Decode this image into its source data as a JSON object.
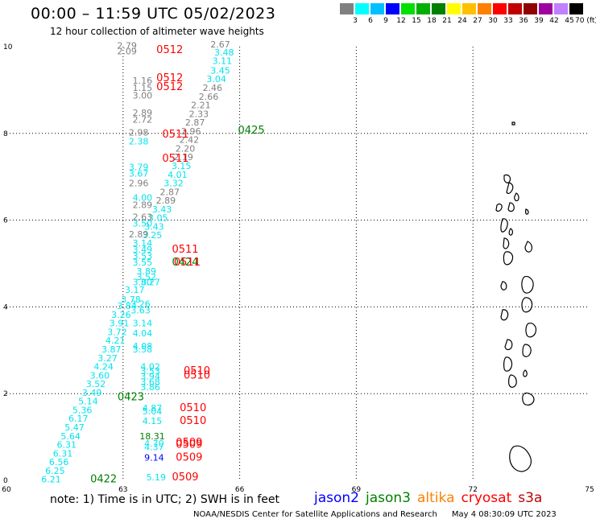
{
  "title": "00:00 – 11:59 UTC 05/02/2023",
  "subtitle": "12 hour collection of altimeter wave heights",
  "colorbar": {
    "colors": [
      "#808080",
      "#00ffff",
      "#00c0ff",
      "#0000ff",
      "#00e000",
      "#00b000",
      "#008000",
      "#ffff00",
      "#ffc000",
      "#ff8000",
      "#ff0000",
      "#c00000",
      "#900000",
      "#a000a0",
      "#c080ff",
      "#000000"
    ],
    "labels": [
      "3",
      "6",
      "9",
      "12",
      "15",
      "18",
      "21",
      "24",
      "27",
      "30",
      "33",
      "36",
      "39",
      "42",
      "45",
      "70 (ft)"
    ]
  },
  "note": "note:  1) Time is in UTC;  2) SWH is in feet",
  "legend": [
    {
      "name": "jason2",
      "color": "#0000ff"
    },
    {
      "name": "jason3",
      "color": "#008000"
    },
    {
      "name": "altika",
      "color": "#ff8000"
    },
    {
      "name": "cryosat",
      "color": "#ff0000"
    },
    {
      "name": "s3a",
      "color": "#c00000"
    }
  ],
  "footer": {
    "credit": "NOAA/NESDIS Center for Satellite Applications and Research",
    "timestamp": "May  4 08:30:09 UTC 2023"
  },
  "chart_data": {
    "type": "scatter",
    "x_ticks": [
      "60",
      "63",
      "66",
      "69",
      "72",
      "75"
    ],
    "y_ticks": [
      "0",
      "2",
      "4",
      "6",
      "8",
      "10"
    ],
    "xlim": [
      60,
      75
    ],
    "ylim": [
      0,
      10
    ],
    "grid": true,
    "track_labels": [
      {
        "x": 64.2,
        "y": 9.85,
        "text": "0512",
        "color": "#ff0000"
      },
      {
        "x": 64.2,
        "y": 9.2,
        "text": "0512",
        "color": "#ff0000"
      },
      {
        "x": 64.2,
        "y": 9.0,
        "text": "0512",
        "color": "#ff0000"
      },
      {
        "x": 66.3,
        "y": 8.0,
        "text": "0425",
        "color": "#008000"
      },
      {
        "x": 64.35,
        "y": 7.9,
        "text": "0511",
        "color": "#ff0000"
      },
      {
        "x": 64.35,
        "y": 7.35,
        "text": "0511",
        "color": "#ff0000"
      },
      {
        "x": 64.6,
        "y": 5.25,
        "text": "0511",
        "color": "#ff0000"
      },
      {
        "x": 64.6,
        "y": 4.95,
        "text": "0424",
        "color": "#008000"
      },
      {
        "x": 64.65,
        "y": 4.95,
        "text": "0511",
        "color": "#ff0000"
      },
      {
        "x": 64.9,
        "y": 2.45,
        "text": "0510",
        "color": "#ff0000"
      },
      {
        "x": 64.9,
        "y": 2.35,
        "text": "0510",
        "color": "#ff0000"
      },
      {
        "x": 63.2,
        "y": 1.85,
        "text": "0423",
        "color": "#008000"
      },
      {
        "x": 64.8,
        "y": 1.6,
        "text": "0510",
        "color": "#ff0000"
      },
      {
        "x": 64.8,
        "y": 1.3,
        "text": "0510",
        "color": "#ff0000"
      },
      {
        "x": 64.7,
        "y": 0.8,
        "text": "0509",
        "color": "#ff0000"
      },
      {
        "x": 64.7,
        "y": 0.75,
        "text": "0509",
        "color": "#ff0000"
      },
      {
        "x": 64.7,
        "y": 0.45,
        "text": "0509",
        "color": "#ff0000"
      },
      {
        "x": 62.5,
        "y": -0.05,
        "text": "0422",
        "color": "#008000"
      },
      {
        "x": 64.6,
        "y": 0.0,
        "text": "0509",
        "color": "#ff0000"
      }
    ],
    "points": [
      {
        "x": 63.1,
        "y": 9.95,
        "v": "2.79",
        "color": "#808080"
      },
      {
        "x": 63.1,
        "y": 9.82,
        "v": "2.09",
        "color": "#808080"
      },
      {
        "x": 65.5,
        "y": 9.98,
        "v": "2.67",
        "color": "#808080"
      },
      {
        "x": 65.6,
        "y": 9.8,
        "v": "3.48",
        "color": "#00e5ee"
      },
      {
        "x": 65.55,
        "y": 9.6,
        "v": "3.11",
        "color": "#00e5ee"
      },
      {
        "x": 65.5,
        "y": 9.38,
        "v": "3.45",
        "color": "#00e5ee"
      },
      {
        "x": 65.4,
        "y": 9.18,
        "v": "3.04",
        "color": "#00e5ee"
      },
      {
        "x": 65.3,
        "y": 8.98,
        "v": "2.46",
        "color": "#808080"
      },
      {
        "x": 65.2,
        "y": 8.78,
        "v": "2.66",
        "color": "#808080"
      },
      {
        "x": 65.0,
        "y": 8.58,
        "v": "2.21",
        "color": "#808080"
      },
      {
        "x": 64.95,
        "y": 8.38,
        "v": "2.33",
        "color": "#808080"
      },
      {
        "x": 64.85,
        "y": 8.18,
        "v": "2.87",
        "color": "#808080"
      },
      {
        "x": 64.75,
        "y": 7.98,
        "v": "2.96",
        "color": "#808080"
      },
      {
        "x": 64.7,
        "y": 7.78,
        "v": "2.42",
        "color": "#808080"
      },
      {
        "x": 64.6,
        "y": 7.58,
        "v": "2.20",
        "color": "#808080"
      },
      {
        "x": 64.55,
        "y": 7.38,
        "v": "2.19",
        "color": "#808080"
      },
      {
        "x": 64.5,
        "y": 7.18,
        "v": "3.15",
        "color": "#00e5ee"
      },
      {
        "x": 64.4,
        "y": 6.98,
        "v": "4.01",
        "color": "#00e5ee"
      },
      {
        "x": 64.3,
        "y": 6.78,
        "v": "3.32",
        "color": "#00e5ee"
      },
      {
        "x": 64.2,
        "y": 6.58,
        "v": "2.87",
        "color": "#808080"
      },
      {
        "x": 64.1,
        "y": 6.38,
        "v": "2.89",
        "color": "#808080"
      },
      {
        "x": 64.0,
        "y": 6.18,
        "v": "3.43",
        "color": "#00e5ee"
      },
      {
        "x": 63.9,
        "y": 5.98,
        "v": "3.05",
        "color": "#00e5ee"
      },
      {
        "x": 63.8,
        "y": 5.78,
        "v": "3.43",
        "color": "#00e5ee"
      },
      {
        "x": 63.75,
        "y": 5.58,
        "v": "3.25",
        "color": "#00e5ee"
      },
      {
        "x": 63.5,
        "y": 9.15,
        "v": "1.16",
        "color": "#808080"
      },
      {
        "x": 63.5,
        "y": 8.98,
        "v": "1.15",
        "color": "#808080"
      },
      {
        "x": 63.5,
        "y": 8.8,
        "v": "3.00",
        "color": "#808080"
      },
      {
        "x": 63.5,
        "y": 8.4,
        "v": "2.89",
        "color": "#808080"
      },
      {
        "x": 63.5,
        "y": 8.25,
        "v": "2.72",
        "color": "#808080"
      },
      {
        "x": 63.4,
        "y": 7.95,
        "v": "2.98",
        "color": "#808080"
      },
      {
        "x": 63.4,
        "y": 7.75,
        "v": "2.38",
        "color": "#00e5ee"
      },
      {
        "x": 63.4,
        "y": 7.15,
        "v": "3.79",
        "color": "#00e5ee"
      },
      {
        "x": 63.4,
        "y": 7.0,
        "v": "3.67",
        "color": "#00e5ee"
      },
      {
        "x": 63.4,
        "y": 6.78,
        "v": "2.96",
        "color": "#808080"
      },
      {
        "x": 63.5,
        "y": 6.45,
        "v": "4.00",
        "color": "#00e5ee"
      },
      {
        "x": 63.5,
        "y": 6.28,
        "v": "2.89",
        "color": "#808080"
      },
      {
        "x": 63.5,
        "y": 6.0,
        "v": "2.63",
        "color": "#808080"
      },
      {
        "x": 63.5,
        "y": 5.85,
        "v": "3.50",
        "color": "#00e5ee"
      },
      {
        "x": 63.4,
        "y": 5.6,
        "v": "2.89",
        "color": "#808080"
      },
      {
        "x": 63.5,
        "y": 5.4,
        "v": "3.14",
        "color": "#00e5ee"
      },
      {
        "x": 63.5,
        "y": 5.25,
        "v": "3.49",
        "color": "#00e5ee"
      },
      {
        "x": 63.5,
        "y": 5.1,
        "v": "3.53",
        "color": "#00e5ee"
      },
      {
        "x": 63.5,
        "y": 4.95,
        "v": "3.55",
        "color": "#00e5ee"
      },
      {
        "x": 63.6,
        "y": 4.75,
        "v": "3.89",
        "color": "#00e5ee"
      },
      {
        "x": 63.6,
        "y": 4.62,
        "v": "3.52",
        "color": "#00e5ee"
      },
      {
        "x": 63.5,
        "y": 4.5,
        "v": "3.00",
        "color": "#00e5ee"
      },
      {
        "x": 63.7,
        "y": 4.5,
        "v": "3.27",
        "color": "#00e5ee"
      },
      {
        "x": 63.3,
        "y": 4.32,
        "v": "3.17",
        "color": "#00e5ee"
      },
      {
        "x": 63.2,
        "y": 4.1,
        "v": "3.78",
        "color": "#00e5ee"
      },
      {
        "x": 63.1,
        "y": 3.95,
        "v": "3.84",
        "color": "#00e5ee"
      },
      {
        "x": 63.45,
        "y": 3.85,
        "v": "3.63",
        "color": "#00e5ee"
      },
      {
        "x": 63.45,
        "y": 4.0,
        "v": "3.26",
        "color": "#00e5ee"
      },
      {
        "x": 62.95,
        "y": 3.75,
        "v": "3.26",
        "color": "#00e5ee"
      },
      {
        "x": 62.9,
        "y": 3.55,
        "v": "3.91",
        "color": "#00e5ee"
      },
      {
        "x": 63.5,
        "y": 3.55,
        "v": "3.14",
        "color": "#00e5ee"
      },
      {
        "x": 62.85,
        "y": 3.35,
        "v": "3.72",
        "color": "#00e5ee"
      },
      {
        "x": 63.5,
        "y": 3.32,
        "v": "4.04",
        "color": "#00e5ee"
      },
      {
        "x": 62.8,
        "y": 3.15,
        "v": "4.21",
        "color": "#00e5ee"
      },
      {
        "x": 62.7,
        "y": 2.95,
        "v": "3.87",
        "color": "#00e5ee"
      },
      {
        "x": 63.5,
        "y": 3.02,
        "v": "4.08",
        "color": "#00e5ee"
      },
      {
        "x": 63.5,
        "y": 2.95,
        "v": "3.58",
        "color": "#00e5ee"
      },
      {
        "x": 62.6,
        "y": 2.75,
        "v": "3.27",
        "color": "#00e5ee"
      },
      {
        "x": 62.5,
        "y": 2.55,
        "v": "4.24",
        "color": "#00e5ee"
      },
      {
        "x": 62.4,
        "y": 2.35,
        "v": "3.60",
        "color": "#00e5ee"
      },
      {
        "x": 62.3,
        "y": 2.15,
        "v": "3.52",
        "color": "#00e5ee"
      },
      {
        "x": 62.2,
        "y": 1.95,
        "v": "3.49",
        "color": "#00e5ee"
      },
      {
        "x": 63.7,
        "y": 2.55,
        "v": "4.02",
        "color": "#00e5ee"
      },
      {
        "x": 63.7,
        "y": 2.45,
        "v": "3.53",
        "color": "#00e5ee"
      },
      {
        "x": 63.7,
        "y": 2.33,
        "v": "3.94",
        "color": "#00e5ee"
      },
      {
        "x": 63.7,
        "y": 2.2,
        "v": "3.68",
        "color": "#00e5ee"
      },
      {
        "x": 63.7,
        "y": 2.08,
        "v": "3.86",
        "color": "#00e5ee"
      },
      {
        "x": 62.1,
        "y": 1.75,
        "v": "5.14",
        "color": "#00e5ee"
      },
      {
        "x": 63.75,
        "y": 1.6,
        "v": "4.87",
        "color": "#00e5ee"
      },
      {
        "x": 63.75,
        "y": 1.52,
        "v": "5.04",
        "color": "#00e5ee"
      },
      {
        "x": 61.95,
        "y": 1.55,
        "v": "5.36",
        "color": "#00e5ee"
      },
      {
        "x": 63.75,
        "y": 1.3,
        "v": "4.15",
        "color": "#00e5ee"
      },
      {
        "x": 61.85,
        "y": 1.35,
        "v": "6.17",
        "color": "#00e5ee"
      },
      {
        "x": 61.75,
        "y": 1.15,
        "v": "5.47",
        "color": "#00e5ee"
      },
      {
        "x": 61.65,
        "y": 0.95,
        "v": "5.64",
        "color": "#00e5ee"
      },
      {
        "x": 63.75,
        "y": 0.95,
        "v": "18.31",
        "color": "#008000"
      },
      {
        "x": 61.55,
        "y": 0.75,
        "v": "6.31",
        "color": "#00e5ee"
      },
      {
        "x": 63.8,
        "y": 0.78,
        "v": "4.70",
        "color": "#00e5ee"
      },
      {
        "x": 63.8,
        "y": 0.7,
        "v": "4.37",
        "color": "#00e5ee"
      },
      {
        "x": 61.45,
        "y": 0.55,
        "v": "6.31",
        "color": "#00e5ee"
      },
      {
        "x": 63.8,
        "y": 0.45,
        "v": "9.14",
        "color": "#0000ff"
      },
      {
        "x": 61.35,
        "y": 0.35,
        "v": "6.56",
        "color": "#00e5ee"
      },
      {
        "x": 61.25,
        "y": 0.15,
        "v": "6.25",
        "color": "#00e5ee"
      },
      {
        "x": 61.15,
        "y": -0.05,
        "v": "6.21",
        "color": "#00e5ee"
      },
      {
        "x": 63.85,
        "y": 0.0,
        "v": "5.19",
        "color": "#00e5ee"
      }
    ]
  }
}
